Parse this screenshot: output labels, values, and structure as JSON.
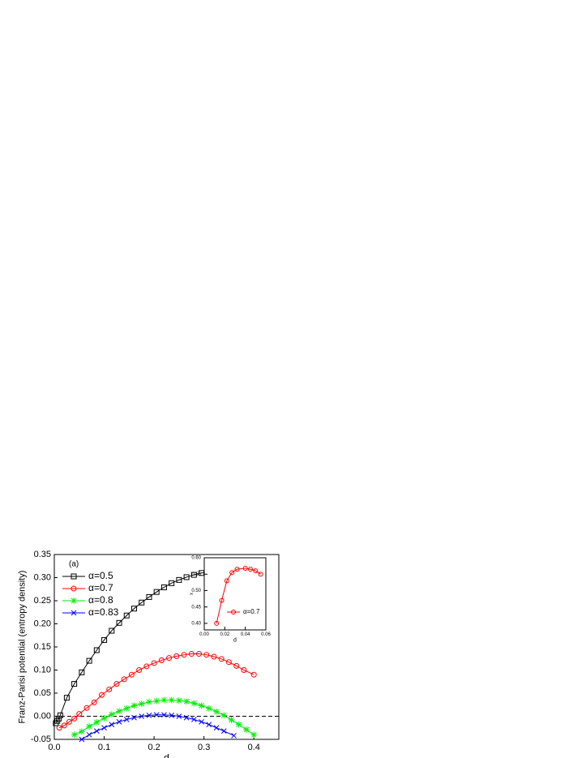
{
  "chart_data": [
    {
      "type": "line",
      "ylabel": "Franz-Parisi potential (entropy density)",
      "xlabel": "d",
      "annotation": "(a)",
      "xlim": [
        0,
        0.45
      ],
      "ylim": [
        -0.05,
        0.35
      ],
      "xticks": [
        {
          "value": 0,
          "label": "0.0"
        },
        0.1,
        0.2,
        0.3,
        0.4
      ],
      "yticks": [
        {
          "value": -0.05,
          "label": "-0.05"
        },
        {
          "value": 0,
          "label": "0.00"
        },
        0.05,
        {
          "value": 0.1,
          "label": "0.10"
        },
        0.15,
        {
          "value": 0.2,
          "label": "0.20"
        },
        0.25,
        {
          "value": 0.3,
          "label": "0.30"
        },
        0.35
      ],
      "reference_line": {
        "y": 0,
        "style": "dashed"
      },
      "legend": "upper left",
      "series": [
        {
          "name": "α=0.5",
          "color": "#000000",
          "marker": "square",
          "x": [
            0.003,
            0.006,
            0.009,
            0.012,
            0.025,
            0.04,
            0.055,
            0.07,
            0.085,
            0.1,
            0.115,
            0.13,
            0.145,
            0.16,
            0.175,
            0.19,
            0.205,
            0.22,
            0.235,
            0.25,
            0.265,
            0.28,
            0.295,
            0.31,
            0.325,
            0.34,
            0.355,
            0.37,
            0.4
          ],
          "values": [
            -0.015,
            -0.01,
            -0.005,
            0.002,
            0.04,
            0.07,
            0.095,
            0.12,
            0.143,
            0.165,
            0.185,
            0.202,
            0.218,
            0.233,
            0.246,
            0.258,
            0.269,
            0.279,
            0.288,
            0.295,
            0.301,
            0.306,
            0.31,
            0.312,
            0.313,
            0.313,
            0.312,
            0.31,
            0.305
          ]
        },
        {
          "name": "α=0.7",
          "color": "#ff0000",
          "marker": "circle",
          "x": [
            0.01,
            0.02,
            0.03,
            0.04,
            0.05,
            0.065,
            0.08,
            0.095,
            0.11,
            0.125,
            0.14,
            0.155,
            0.17,
            0.185,
            0.2,
            0.215,
            0.23,
            0.245,
            0.26,
            0.275,
            0.29,
            0.305,
            0.32,
            0.335,
            0.35,
            0.365,
            0.38,
            0.4
          ],
          "values": [
            -0.025,
            -0.02,
            -0.012,
            -0.005,
            0.005,
            0.018,
            0.03,
            0.046,
            0.058,
            0.07,
            0.08,
            0.09,
            0.1,
            0.108,
            0.115,
            0.121,
            0.126,
            0.13,
            0.133,
            0.135,
            0.135,
            0.133,
            0.129,
            0.124,
            0.117,
            0.109,
            0.1,
            0.09
          ]
        },
        {
          "name": "α=0.8",
          "color": "#00ee00",
          "marker": "star",
          "x": [
            0.04,
            0.055,
            0.07,
            0.085,
            0.1,
            0.115,
            0.13,
            0.145,
            0.16,
            0.175,
            0.19,
            0.205,
            0.22,
            0.235,
            0.25,
            0.265,
            0.28,
            0.295,
            0.31,
            0.325,
            0.34,
            0.355,
            0.37,
            0.385,
            0.4
          ],
          "values": [
            -0.04,
            -0.033,
            -0.022,
            -0.013,
            -0.004,
            0.004,
            0.011,
            0.017,
            0.023,
            0.027,
            0.031,
            0.033,
            0.035,
            0.035,
            0.034,
            0.032,
            0.028,
            0.023,
            0.017,
            0.01,
            0.002,
            -0.008,
            -0.018,
            -0.029,
            -0.04
          ]
        },
        {
          "name": "α=0.83",
          "color": "#0000ff",
          "marker": "x",
          "x": [
            0.055,
            0.07,
            0.085,
            0.1,
            0.115,
            0.13,
            0.145,
            0.16,
            0.175,
            0.19,
            0.205,
            0.22,
            0.235,
            0.25,
            0.265,
            0.28,
            0.295,
            0.31,
            0.325,
            0.34,
            0.36
          ],
          "values": [
            -0.05,
            -0.04,
            -0.032,
            -0.025,
            -0.018,
            -0.012,
            -0.007,
            -0.003,
            0,
            0.002,
            0.003,
            0.003,
            0.002,
            0,
            -0.003,
            -0.007,
            -0.012,
            -0.018,
            -0.025,
            -0.032,
            -0.042
          ]
        }
      ]
    },
    {
      "type": "line",
      "inset": true,
      "xlabel": "d",
      "ylabel": "x",
      "xlim": [
        0,
        0.06
      ],
      "ylim": [
        0.38,
        0.6
      ],
      "xticks": [
        {
          "value": 0,
          "label": "0.00"
        },
        0.02,
        0.04,
        0.06
      ],
      "yticks": [
        {
          "value": 0.4,
          "label": "0.40"
        },
        0.45,
        {
          "value": 0.5,
          "label": "0.50"
        },
        0.55,
        {
          "value": 0.6,
          "label": "0.60"
        }
      ],
      "legend": "lower right",
      "series": [
        {
          "name": "α=0.7",
          "color": "#ff0000",
          "marker": "circle",
          "x": [
            0.012,
            0.017,
            0.022,
            0.027,
            0.032,
            0.04,
            0.045,
            0.05,
            0.055
          ],
          "values": [
            0.4,
            0.47,
            0.53,
            0.555,
            0.565,
            0.568,
            0.565,
            0.56,
            0.55
          ]
        }
      ]
    }
  ]
}
